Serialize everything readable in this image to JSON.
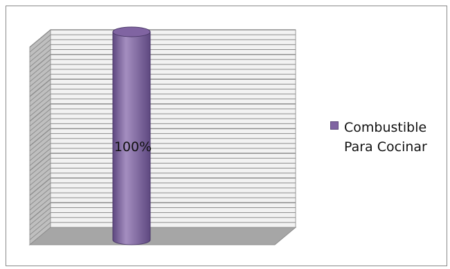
{
  "chart_data": {
    "type": "bar",
    "style": "3d-cylinder",
    "categories": [
      ""
    ],
    "series": [
      {
        "name": "Combustible Para Cocinar",
        "values": [
          100
        ]
      }
    ],
    "data_labels": [
      "100%"
    ],
    "ylim": [
      0,
      100
    ],
    "grid": true,
    "legend_position": "right",
    "colors": {
      "bar": "#8064a2",
      "bar_dark": "#5e4880",
      "bar_light": "#a48ec0",
      "wall": "#f2f2f2",
      "gridline": "#8c8c8c",
      "floor": "#a6a6a6",
      "side_wall": "#bfbfbf"
    }
  }
}
